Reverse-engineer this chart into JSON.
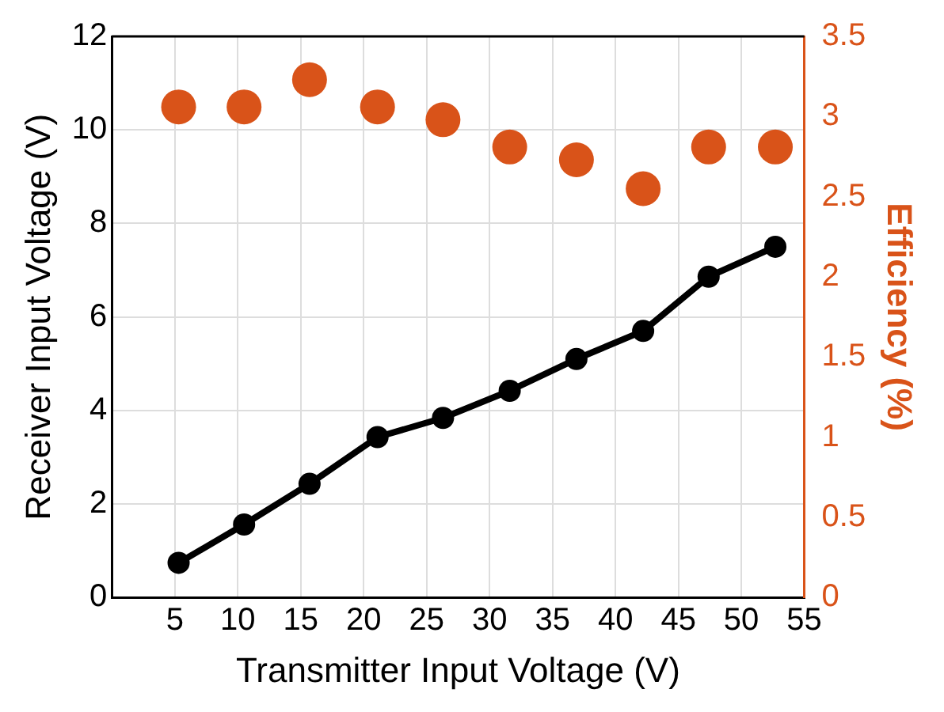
{
  "chart_data": {
    "type": "line",
    "xlabel": "Transmitter Input Voltage (V)",
    "ylabel": "Receiver Input Voltage (V)",
    "y2label": "Efficiency (%)",
    "xlim": [
      0,
      55
    ],
    "xticks": [
      5,
      10,
      15,
      20,
      25,
      30,
      35,
      40,
      45,
      50,
      55
    ],
    "ylim": [
      0,
      12
    ],
    "yticks": [
      0,
      2,
      4,
      6,
      8,
      10,
      12
    ],
    "y2lim": [
      0,
      3.5
    ],
    "y2ticks": [
      0,
      0.5,
      1,
      1.5,
      2,
      2.5,
      3,
      3.5
    ],
    "grid": true,
    "legend": false,
    "marker": "circle",
    "series": [
      {
        "type": "line",
        "color": "#000000",
        "x": [
          5.3,
          10.5,
          15.7,
          21.1,
          26.3,
          31.6,
          36.9,
          42.2,
          47.4,
          52.7
        ],
        "values": [
          0.74,
          1.56,
          2.43,
          3.43,
          3.84,
          4.42,
          5.1,
          5.7,
          6.86,
          7.5
        ]
      },
      {
        "type": "scatter",
        "axis": "y2",
        "color": "#d95319",
        "x": [
          5.3,
          10.5,
          15.7,
          21.1,
          26.3,
          31.6,
          36.9,
          42.2,
          47.4,
          52.7
        ],
        "values": [
          3.06,
          3.06,
          3.23,
          3.06,
          2.98,
          2.81,
          2.73,
          2.55,
          2.81,
          2.81
        ]
      }
    ]
  }
}
